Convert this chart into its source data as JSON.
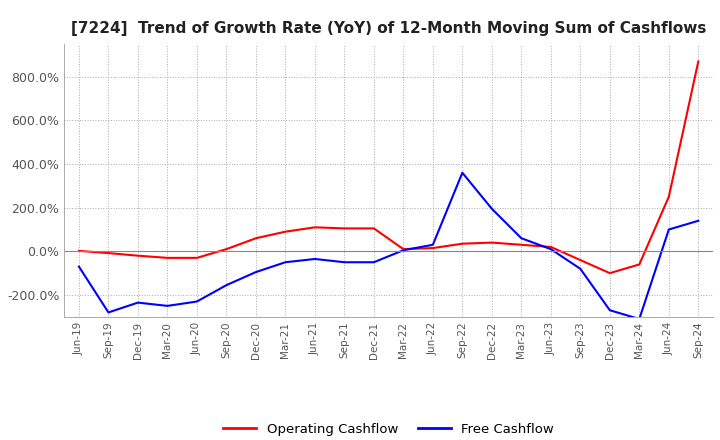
{
  "title": "[7224]  Trend of Growth Rate (YoY) of 12-Month Moving Sum of Cashflows",
  "title_fontsize": 11,
  "legend_labels": [
    "Operating Cashflow",
    "Free Cashflow"
  ],
  "legend_colors": [
    "#ff0000",
    "#0000ff"
  ],
  "ylim": [
    -300,
    950
  ],
  "yticks": [
    -200,
    0,
    200,
    400,
    600,
    800
  ],
  "yticklabels": [
    "-200.0%",
    "0.0%",
    "200.0%",
    "400.0%",
    "600.0%",
    "800.0%"
  ],
  "background_color": "#ffffff",
  "grid_color": "#aaaaaa",
  "x_labels": [
    "Jun-19",
    "Sep-19",
    "Dec-19",
    "Mar-20",
    "Jun-20",
    "Sep-20",
    "Dec-20",
    "Mar-21",
    "Jun-21",
    "Sep-21",
    "Dec-21",
    "Mar-22",
    "Jun-22",
    "Sep-22",
    "Dec-22",
    "Mar-23",
    "Jun-23",
    "Sep-23",
    "Dec-23",
    "Mar-24",
    "Jun-24",
    "Sep-24"
  ],
  "operating_cashflow": [
    2,
    -8,
    -20,
    -30,
    -30,
    10,
    60,
    90,
    110,
    105,
    105,
    10,
    15,
    35,
    40,
    30,
    20,
    -40,
    -100,
    -60,
    250,
    870
  ],
  "free_cashflow": [
    -70,
    -280,
    -235,
    -250,
    -230,
    -155,
    -95,
    -50,
    -35,
    -50,
    -50,
    5,
    30,
    360,
    195,
    60,
    10,
    -80,
    -270,
    -310,
    100,
    140
  ]
}
